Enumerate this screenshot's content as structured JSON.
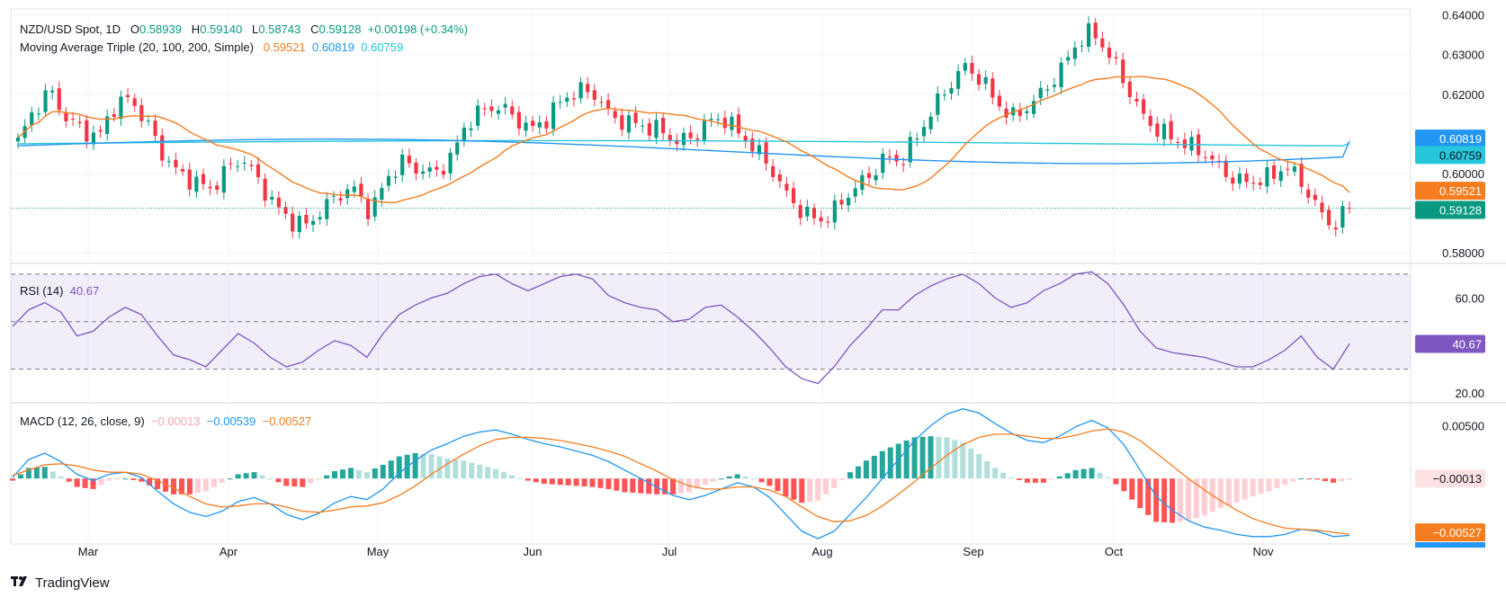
{
  "header": {
    "symbol": "NZD/USD Spot, 1D",
    "o_label": "O",
    "o": "0.58939",
    "h_label": "H",
    "h": "0.59140",
    "l_label": "L",
    "l": "0.58743",
    "c_label": "C",
    "c": "0.59128",
    "change": "+0.00198 (+0.34%)",
    "ma_label": "Moving Average Triple (20, 100, 200, Simple)",
    "ma20": "0.59521",
    "ma100": "0.60819",
    "ma200": "0.60759",
    "rsi_label": "RSI (14)",
    "rsi_value": "40.67",
    "macd_label": "MACD (12, 26, close, 9)",
    "macd_hist": "−0.00013",
    "macd_line": "−0.00539",
    "macd_signal": "−0.00527"
  },
  "brand": "TradingView",
  "colors": {
    "up": "#089981",
    "down": "#f23645",
    "ma20": "#f57c1f",
    "ma100": "#2196f3",
    "ma200": "#26c6da",
    "rsi": "#7e57c2",
    "macd": "#2196f3",
    "signal": "#f57c1f",
    "hist_up_strong": "#26a69a",
    "hist_up_weak": "#b2dfdb",
    "hist_down_strong": "#ff5252",
    "hist_down_weak": "#ffcdd2",
    "grid": "#f0f3fa",
    "text": "#131722"
  },
  "chart_data": [
    {
      "type": "candlestick",
      "title": "NZD/USD Spot, 1D",
      "x_ticks": [
        "Mar",
        "Apr",
        "May",
        "Jun",
        "Jul",
        "Aug",
        "Sep",
        "Oct",
        "Nov"
      ],
      "y_ticks": [
        "0.64000",
        "0.63000",
        "0.62000",
        "0.60000",
        "0.58000"
      ],
      "ylim": [
        0.578,
        0.6415
      ],
      "close_anchors": [
        0.608,
        0.616,
        0.621,
        0.614,
        0.611,
        0.609,
        0.617,
        0.619,
        0.613,
        0.605,
        0.6,
        0.598,
        0.596,
        0.601,
        0.604,
        0.598,
        0.592,
        0.588,
        0.587,
        0.591,
        0.595,
        0.596,
        0.59,
        0.599,
        0.603,
        0.601,
        0.6,
        0.604,
        0.613,
        0.616,
        0.617,
        0.614,
        0.611,
        0.614,
        0.619,
        0.621,
        0.62,
        0.614,
        0.613,
        0.612,
        0.611,
        0.608,
        0.609,
        0.613,
        0.614,
        0.61,
        0.606,
        0.601,
        0.594,
        0.59,
        0.588,
        0.591,
        0.596,
        0.599,
        0.604,
        0.603,
        0.609,
        0.616,
        0.622,
        0.627,
        0.624,
        0.618,
        0.614,
        0.617,
        0.621,
        0.626,
        0.633,
        0.636,
        0.63,
        0.623,
        0.615,
        0.611,
        0.609,
        0.607,
        0.605,
        0.601,
        0.598,
        0.598,
        0.599,
        0.602,
        0.598,
        0.591,
        0.5865,
        0.5913
      ],
      "annotations": [
        "0.60819",
        "0.60759",
        "0.59521",
        "0.59128"
      ]
    },
    {
      "type": "line",
      "title": "RSI (14)",
      "y_ticks": [
        "60.00",
        "20.00"
      ],
      "levels": [
        70,
        50,
        30
      ],
      "ylim": [
        17,
        73
      ],
      "values": [
        48,
        55,
        58,
        54,
        44,
        46,
        52,
        56,
        53,
        44,
        36,
        34,
        31,
        38,
        45,
        41,
        35,
        31,
        33,
        38,
        42,
        40,
        35,
        45,
        53,
        57,
        60,
        62,
        66,
        69,
        70,
        66,
        63,
        66,
        69,
        70,
        68,
        61,
        58,
        56,
        55,
        50,
        51,
        56,
        57,
        52,
        46,
        39,
        31,
        26,
        24,
        31,
        40,
        47,
        55,
        55,
        61,
        65,
        68,
        70,
        66,
        60,
        56,
        58,
        63,
        66,
        70,
        71,
        66,
        57,
        46,
        39,
        37,
        36,
        35,
        33,
        31,
        31,
        34,
        38,
        44,
        35,
        30,
        40.67
      ],
      "annotation": "40.67"
    },
    {
      "type": "bar",
      "title": "MACD (12, 26, close, 9)",
      "y_ticks": [
        "0.00500"
      ],
      "ylim": [
        -0.0062,
        0.007
      ],
      "macd": [
        0.0001,
        0.0018,
        0.0024,
        0.0016,
        0.0004,
        -0.0002,
        0.0004,
        0.0006,
        0.0001,
        -0.0012,
        -0.0024,
        -0.0032,
        -0.0036,
        -0.0031,
        -0.0022,
        -0.0018,
        -0.0024,
        -0.0034,
        -0.0039,
        -0.0033,
        -0.0023,
        -0.0017,
        -0.002,
        -0.001,
        0.0005,
        0.0017,
        0.0027,
        0.0033,
        0.004,
        0.0044,
        0.0046,
        0.0042,
        0.0037,
        0.0033,
        0.003,
        0.0026,
        0.0022,
        0.0016,
        0.0008,
        0.0,
        -0.0008,
        -0.0016,
        -0.002,
        -0.0016,
        -0.001,
        -0.0004,
        -0.0008,
        -0.0018,
        -0.0034,
        -0.005,
        -0.0057,
        -0.005,
        -0.0034,
        -0.0018,
        0.0,
        0.0018,
        0.0036,
        0.005,
        0.0061,
        0.0066,
        0.0062,
        0.0052,
        0.0043,
        0.0036,
        0.0034,
        0.004,
        0.0049,
        0.0055,
        0.0048,
        0.0032,
        0.0008,
        -0.0017,
        -0.003,
        -0.004,
        -0.0046,
        -0.0049,
        -0.0053,
        -0.0055,
        -0.0055,
        -0.0053,
        -0.0048,
        -0.005,
        -0.0055,
        -0.00539
      ],
      "signal": [
        0.0003,
        0.0008,
        0.0013,
        0.0014,
        0.0012,
        0.0008,
        0.0006,
        0.0006,
        0.0004,
        -0.0002,
        -0.0009,
        -0.0017,
        -0.0024,
        -0.0027,
        -0.0026,
        -0.0024,
        -0.0024,
        -0.0027,
        -0.0031,
        -0.0032,
        -0.003,
        -0.0027,
        -0.0026,
        -0.0023,
        -0.0016,
        -0.0007,
        0.0004,
        0.0014,
        0.0023,
        0.0031,
        0.0037,
        0.0039,
        0.0039,
        0.0038,
        0.0036,
        0.0033,
        0.003,
        0.0026,
        0.0021,
        0.0014,
        0.0007,
        -0.0001,
        -0.0007,
        -0.001,
        -0.001,
        -0.0008,
        -0.0008,
        -0.0011,
        -0.0017,
        -0.0027,
        -0.0036,
        -0.0041,
        -0.004,
        -0.0035,
        -0.0026,
        -0.0015,
        -0.0003,
        0.001,
        0.0022,
        0.0032,
        0.0039,
        0.0042,
        0.0042,
        0.004,
        0.0038,
        0.0038,
        0.0041,
        0.0045,
        0.0047,
        0.0044,
        0.0036,
        0.0024,
        0.0012,
        0.0,
        -0.0011,
        -0.0021,
        -0.003,
        -0.0038,
        -0.0043,
        -0.0047,
        -0.0048,
        -0.0049,
        -0.0051,
        -0.00527
      ],
      "annotations": [
        "−0.00013",
        "−0.00527",
        "0.00500"
      ]
    }
  ]
}
